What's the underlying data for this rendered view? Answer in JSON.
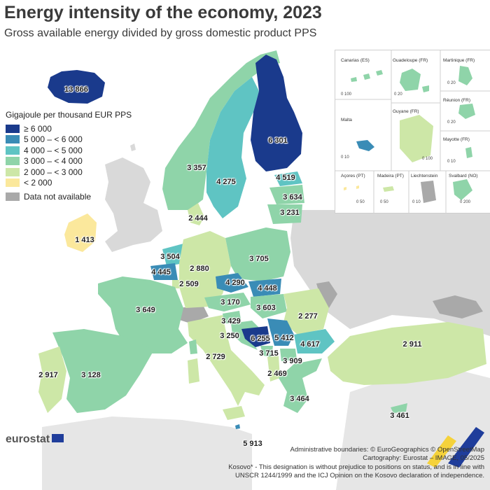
{
  "title": "Energy intensity of the economy, 2023",
  "subtitle": "Gross available energy divided by gross domestic product PPS",
  "legend": {
    "title": "Gigajoule per thousand EUR PPS",
    "classes": [
      {
        "label": "≥ 6 000",
        "color": "#1a3a8c"
      },
      {
        "label": "5 000 – < 6 000",
        "color": "#3a8cb6"
      },
      {
        "label": "4 000 – < 5 000",
        "color": "#5fc4c3"
      },
      {
        "label": "3 000 – < 4 000",
        "color": "#8fd4a9"
      },
      {
        "label": "2 000 – < 3 000",
        "color": "#cde7a7"
      },
      {
        "label": "< 2 000",
        "color": "#fbe89c"
      }
    ],
    "na_label": "Data not available",
    "na_color": "#a9a9a9"
  },
  "regions": [
    {
      "name": "Iceland",
      "value": "13 866"
    },
    {
      "name": "Finland",
      "value": "6 301"
    },
    {
      "name": "Norway",
      "value": "3 357"
    },
    {
      "name": "Sweden",
      "value": "4 275"
    },
    {
      "name": "Estonia",
      "value": "4 519"
    },
    {
      "name": "Latvia",
      "value": "3 634"
    },
    {
      "name": "Lithuania",
      "value": "3 231"
    },
    {
      "name": "Denmark",
      "value": "2 444"
    },
    {
      "name": "Ireland",
      "value": "1 413"
    },
    {
      "name": "Netherlands",
      "value": "3 504"
    },
    {
      "name": "Belgium",
      "value": "4 445"
    },
    {
      "name": "Luxembourg",
      "value": "2 509"
    },
    {
      "name": "Germany",
      "value": "2 880"
    },
    {
      "name": "Poland",
      "value": "3 705"
    },
    {
      "name": "Czechia",
      "value": "4 290"
    },
    {
      "name": "Slovakia",
      "value": "4 448"
    },
    {
      "name": "Austria",
      "value": "3 170"
    },
    {
      "name": "Hungary",
      "value": "3 603"
    },
    {
      "name": "France",
      "value": "3 649"
    },
    {
      "name": "Romania",
      "value": "2 277"
    },
    {
      "name": "Slovenia",
      "value": "3 429"
    },
    {
      "name": "Croatia",
      "value": "3 250"
    },
    {
      "name": "Bosnia and Herzegovina",
      "value": "6 255"
    },
    {
      "name": "Serbia",
      "value": "5 412"
    },
    {
      "name": "Bulgaria",
      "value": "4 617"
    },
    {
      "name": "Montenegro",
      "value": "3 715"
    },
    {
      "name": "North Macedonia",
      "value": "3 909"
    },
    {
      "name": "Italy",
      "value": "2 729"
    },
    {
      "name": "Albania",
      "value": "2 469"
    },
    {
      "name": "Greece",
      "value": "3 464"
    },
    {
      "name": "Türkiye",
      "value": "2 911"
    },
    {
      "name": "Portugal",
      "value": "2 917"
    },
    {
      "name": "Spain",
      "value": "3 128"
    },
    {
      "name": "Malta",
      "value": "5 913"
    },
    {
      "name": "Cyprus",
      "value": "3 461"
    }
  ],
  "insets": {
    "canarias": {
      "title": "Canarias (ES)",
      "scale": "0  100"
    },
    "guadeloupe": {
      "title": "Guadeloupe (FR)",
      "scale": "0  20"
    },
    "martinique": {
      "title": "Martinique (FR)",
      "scale": "0  20"
    },
    "reunion": {
      "title": "Réunion (FR)",
      "scale": "0  20"
    },
    "malta": {
      "title": "Malta",
      "scale": "0  10"
    },
    "guyane": {
      "title": "Guyane (FR)",
      "scale": "0  100"
    },
    "mayotte": {
      "title": "Mayotte (FR)",
      "scale": "0  10"
    },
    "acores": {
      "title": "Açores (PT)",
      "scale": "0  50"
    },
    "madeira": {
      "title": "Madeira (PT)",
      "scale": "0  50"
    },
    "liechtenstein": {
      "title": "Liechtenstein",
      "scale": "0  10"
    },
    "svalbard": {
      "title": "Svalbard (NO)",
      "scale": "0  200"
    }
  },
  "logo": "eurostat",
  "footer": {
    "line1": "Administrative boundaries: © EuroGeographics © OpenStreetMap",
    "line2": "Cartography: Eurostat – IMAGE, 05/2025",
    "line3": "Kosovo* - This designation is without prejudice to positions on status, and is in line with",
    "line4": "UNSCR 1244/1999 and the ICJ Opinion on the Kosovo declaration of independence."
  },
  "colors": {
    "sea": "#ffffff",
    "non_data_land": "#d9d9d9",
    "border": "#ffffff"
  }
}
